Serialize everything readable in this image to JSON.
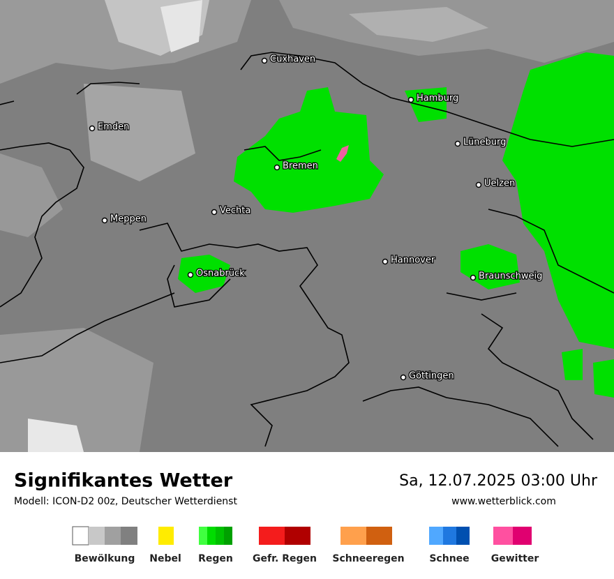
{
  "header": {
    "title": "Signifikantes Wetter",
    "model": "Modell: ICON-D2 00z, Deutscher Wetterdienst",
    "date": "Sa, 12.07.2025 03:00 Uhr",
    "website": "www.wetterblick.com"
  },
  "cities": [
    "Cuxhaven",
    "Hamburg",
    "Emden",
    "Lüneburg",
    "Bremen",
    "Uelzen",
    "Vechta",
    "Meppen",
    "Hannover",
    "Osnabrück",
    "Braunschweig",
    "Göttingen"
  ],
  "legend": [
    "Bewölkung",
    "Nebel",
    "Regen",
    "Gefr. Regen",
    "Schneeregen",
    "Schnee",
    "Gewitter"
  ]
}
